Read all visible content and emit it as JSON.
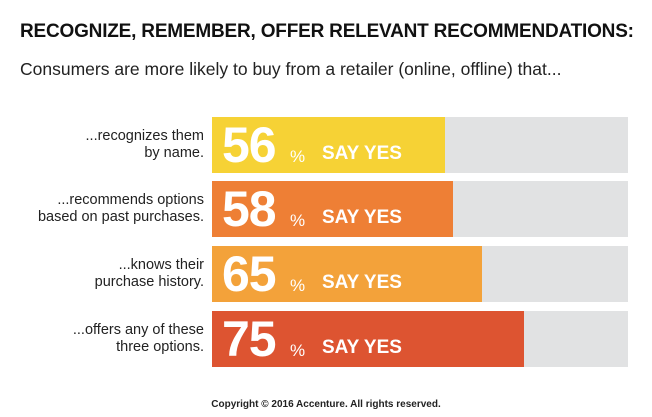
{
  "header": {
    "title": "RECOGNIZE, REMEMBER, OFFER RELEVANT RECOMMENDATIONS:",
    "subtitle": "Consumers are more likely to buy from a retailer (online, offline) that..."
  },
  "chart_data": {
    "type": "bar",
    "orientation": "horizontal",
    "categories": [
      "...recognizes them\nby name.",
      "...recommends options\nbased on past purchases.",
      "...knows their\npurchase history.",
      "...offers any of these\nthree options."
    ],
    "values": [
      56,
      58,
      65,
      75
    ],
    "value_labels": [
      "56",
      "58",
      "65",
      "75"
    ],
    "unit": "%",
    "bar_text": "SAY YES",
    "xlim": [
      0,
      100
    ],
    "colors": [
      "#f6d235",
      "#ee7f35",
      "#f3a23a",
      "#dd5431"
    ],
    "track_color": "#e1e2e3",
    "legend": "none",
    "grid": false
  },
  "footer": {
    "copyright": "Copyright © 2016 Accenture. All rights reserved."
  }
}
